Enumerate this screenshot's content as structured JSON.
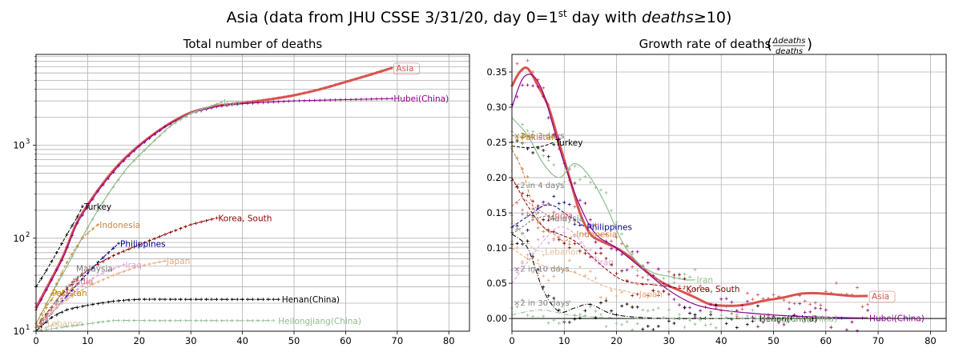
{
  "figure": {
    "suptitle": "Asia (data from JHU CSSE 3/31/20, day 0=1",
    "suptitle_sup": "st",
    "suptitle_mid": " day with ",
    "suptitle_italic": "deaths",
    "suptitle_end": "≥10)"
  },
  "chart_data": [
    {
      "type": "line",
      "title": "Total number of deaths",
      "xlabel": "",
      "ylabel": "",
      "xlim": [
        0,
        84
      ],
      "ylim": [
        10,
        9500
      ],
      "yscale": "log",
      "xticks": [
        0,
        10,
        20,
        30,
        40,
        50,
        60,
        70,
        80
      ],
      "yticks": [
        {
          "value": 10,
          "label": "10",
          "exp": "1"
        },
        {
          "value": 100,
          "label": "10",
          "exp": "2"
        },
        {
          "value": 1000,
          "label": "10",
          "exp": "3"
        }
      ],
      "grid": true,
      "series": [
        {
          "name": "Asia",
          "color": "#d9534f",
          "width": 3,
          "dash": "",
          "boxed": true,
          "x": [
            0,
            5,
            8,
            12,
            16,
            20,
            25,
            30,
            35,
            40,
            45,
            50,
            55,
            60,
            65,
            69
          ],
          "y": [
            18,
            60,
            150,
            330,
            620,
            1000,
            1600,
            2250,
            2650,
            2850,
            3100,
            3450,
            4000,
            4800,
            5800,
            6800
          ]
        },
        {
          "name": "Hubei(China)",
          "color": "#8b008b",
          "width": 1,
          "dash": "",
          "x": [
            0,
            5,
            8,
            12,
            16,
            20,
            25,
            30,
            35,
            40,
            50,
            60,
            69
          ],
          "y": [
            17,
            58,
            145,
            320,
            600,
            980,
            1580,
            2200,
            2600,
            2800,
            3000,
            3100,
            3180
          ]
        },
        {
          "name": "Iran",
          "color": "#8fbc8f",
          "width": 1.2,
          "dash": "",
          "x": [
            0,
            3,
            6,
            10,
            14,
            18,
            22,
            26,
            30,
            36
          ],
          "y": [
            12,
            25,
            50,
            130,
            300,
            600,
            1000,
            1600,
            2200,
            2900
          ]
        },
        {
          "name": "Turkey",
          "color": "#000000",
          "width": 1,
          "dash": "4,2",
          "x": [
            0,
            2,
            4,
            6,
            8,
            9
          ],
          "y": [
            30,
            45,
            70,
            110,
            170,
            220
          ]
        },
        {
          "name": "Indonesia",
          "color": "#cd853f",
          "width": 1,
          "dash": "4,2",
          "x": [
            0,
            3,
            6,
            9,
            12
          ],
          "y": [
            12,
            25,
            55,
            100,
            140
          ]
        },
        {
          "name": "Korea, South",
          "color": "#8b0000",
          "width": 1,
          "dash": "4,2",
          "x": [
            0,
            5,
            10,
            15,
            20,
            25,
            30,
            35
          ],
          "y": [
            11,
            25,
            45,
            65,
            85,
            110,
            140,
            165
          ]
        },
        {
          "name": "Philippines",
          "color": "#00008b",
          "width": 1,
          "dash": "4,2",
          "x": [
            0,
            4,
            8,
            12,
            16
          ],
          "y": [
            10,
            18,
            32,
            55,
            88
          ]
        },
        {
          "name": "Iraq",
          "color": "#dda0dd",
          "width": 1,
          "dash": "4,2",
          "x": [
            0,
            4,
            8,
            12,
            17
          ],
          "y": [
            10,
            18,
            28,
            40,
            52
          ]
        },
        {
          "name": "Japan",
          "color": "#e9a97a",
          "width": 1,
          "dash": "4,2",
          "x": [
            0,
            5,
            10,
            15,
            20,
            25
          ],
          "y": [
            11,
            20,
            30,
            40,
            50,
            57
          ]
        },
        {
          "name": "Malaysia",
          "color": "#777777",
          "width": 1,
          "dash": "3,2",
          "x": [
            0,
            3,
            6,
            9
          ],
          "y": [
            10,
            18,
            30,
            42
          ]
        },
        {
          "name": "India",
          "color": "#e07070",
          "width": 1,
          "dash": "3,2",
          "x": [
            0,
            3,
            6,
            8
          ],
          "y": [
            10,
            17,
            26,
            32
          ]
        },
        {
          "name": "Pakistan",
          "color": "#b8860b",
          "width": 1,
          "dash": "3,2",
          "x": [
            0,
            2,
            4
          ],
          "y": [
            10,
            18,
            26
          ]
        },
        {
          "name": "Lebanon",
          "color": "#e0c0a0",
          "width": 1,
          "dash": "3,2",
          "x": [
            0,
            2,
            4
          ],
          "y": [
            10,
            11,
            12
          ]
        },
        {
          "name": "Henan(China)",
          "color": "#000000",
          "width": 1,
          "dash": "6,2,1,2",
          "x": [
            0,
            3,
            6,
            10,
            15,
            20,
            30,
            40,
            47
          ],
          "y": [
            10,
            14,
            17,
            19,
            21,
            22,
            22,
            22,
            22
          ]
        },
        {
          "name": "Heilongjiang(China)",
          "color": "#8fbc8f",
          "width": 1,
          "dash": "6,2,1,2",
          "x": [
            0,
            5,
            10,
            15,
            25,
            35,
            46
          ],
          "y": [
            10,
            11,
            12,
            13,
            13,
            13,
            13
          ]
        }
      ]
    },
    {
      "type": "line",
      "title": "Growth rate of deaths",
      "xlabel": "",
      "ylabel": "",
      "xlim": [
        0,
        83
      ],
      "ylim": [
        -0.018,
        0.375
      ],
      "xticks": [
        0,
        10,
        20,
        30,
        40,
        50,
        60,
        70,
        80
      ],
      "yticks": [
        0.0,
        0.05,
        0.1,
        0.15,
        0.2,
        0.25,
        0.3,
        0.35
      ],
      "ytick_labels": [
        "0.00",
        "0.05",
        "0.10",
        "0.15",
        "0.20",
        "0.25",
        "0.30",
        "0.35"
      ],
      "grid": true,
      "reference_lines": [
        {
          "label": "×2 in 3 days",
          "value": 0.26
        },
        {
          "label": "×2 in 4 days",
          "value": 0.19
        },
        {
          "label": "×2 in 10 days",
          "value": 0.071
        },
        {
          "label": "×2 in 30 days",
          "value": 0.023
        }
      ],
      "series": [
        {
          "name": "Asia",
          "color": "#d9534f",
          "width": 3,
          "dash": "",
          "boxed": true,
          "x": [
            0,
            1.5,
            3,
            5,
            7,
            9,
            11,
            13,
            15,
            17,
            20,
            23,
            26,
            29,
            32,
            35,
            38,
            42,
            45,
            48,
            52,
            55,
            58,
            62,
            65,
            68
          ],
          "y": [
            0.33,
            0.35,
            0.355,
            0.33,
            0.3,
            0.25,
            0.2,
            0.15,
            0.12,
            0.11,
            0.1,
            0.085,
            0.065,
            0.05,
            0.04,
            0.03,
            0.02,
            0.018,
            0.02,
            0.025,
            0.03,
            0.035,
            0.036,
            0.034,
            0.032,
            0.032
          ]
        },
        {
          "name": "Hubei(China)",
          "color": "#8b008b",
          "width": 1.2,
          "dash": "",
          "x": [
            0,
            2,
            4,
            6,
            8,
            10,
            13,
            16,
            20,
            25,
            30,
            35,
            40,
            45,
            50,
            55,
            60,
            65,
            68
          ],
          "y": [
            0.3,
            0.34,
            0.345,
            0.32,
            0.27,
            0.22,
            0.16,
            0.12,
            0.1,
            0.07,
            0.04,
            0.02,
            0.012,
            0.008,
            0.005,
            0.003,
            0.002,
            0.001,
            0.001
          ]
        },
        {
          "name": "Iran",
          "color": "#8fbc8f",
          "width": 1.2,
          "dash": "",
          "x": [
            0,
            3,
            6,
            9,
            12,
            15,
            18,
            21,
            24,
            27,
            30,
            33,
            35
          ],
          "y": [
            0.285,
            0.26,
            0.22,
            0.2,
            0.22,
            0.2,
            0.16,
            0.11,
            0.08,
            0.065,
            0.06,
            0.055,
            0.055
          ]
        },
        {
          "name": "Turkey",
          "color": "#000000",
          "width": 1,
          "dash": "4,2",
          "x": [
            0,
            2,
            4,
            6,
            8
          ],
          "y": [
            0.245,
            0.243,
            0.243,
            0.245,
            0.25
          ]
        },
        {
          "name": "Pakistan",
          "color": "#b8860b",
          "width": 1,
          "dash": "3,2",
          "x": [
            0,
            1,
            2,
            3
          ],
          "y": [
            0.26,
            0.258,
            0.258,
            0.258
          ]
        },
        {
          "name": "Indonesia",
          "color": "#cd853f",
          "width": 1,
          "dash": "4,2",
          "x": [
            0,
            2,
            4,
            6,
            8,
            10,
            12
          ],
          "y": [
            0.24,
            0.21,
            0.16,
            0.13,
            0.12,
            0.11,
            0.12
          ]
        },
        {
          "name": "Philippines",
          "color": "#00008b",
          "width": 1,
          "dash": "4,2",
          "x": [
            0,
            2,
            4,
            6,
            8,
            10,
            12,
            14
          ],
          "y": [
            0.13,
            0.14,
            0.15,
            0.16,
            0.16,
            0.15,
            0.14,
            0.13
          ]
        },
        {
          "name": "Malaysia",
          "color": "#777777",
          "width": 1,
          "dash": "3,2",
          "x": [
            0,
            2,
            4,
            6,
            8
          ],
          "y": [
            0.12,
            0.13,
            0.14,
            0.145,
            0.145
          ]
        },
        {
          "name": "India",
          "color": "#e07070",
          "width": 1,
          "dash": "3,2",
          "x": [
            0,
            2,
            4,
            6,
            8
          ],
          "y": [
            0.16,
            0.17,
            0.16,
            0.15,
            0.14
          ]
        },
        {
          "name": "Iraq",
          "color": "#dda0dd",
          "width": 1,
          "dash": "4,2",
          "x": [
            0,
            3,
            6,
            9,
            12,
            15,
            16
          ],
          "y": [
            0.05,
            0.08,
            0.11,
            0.13,
            0.12,
            0.09,
            0.08
          ]
        },
        {
          "name": "Lebanon",
          "color": "#e0c0a0",
          "width": 1,
          "dash": "3,2",
          "x": [
            0,
            2,
            4,
            6
          ],
          "y": [
            0.14,
            0.12,
            0.1,
            0.095
          ]
        },
        {
          "name": "Korea, South",
          "color": "#8b0000",
          "width": 1,
          "dash": "4,2",
          "x": [
            0,
            3,
            6,
            9,
            12,
            15,
            18,
            21,
            24,
            27,
            30,
            33
          ],
          "y": [
            0.2,
            0.16,
            0.13,
            0.12,
            0.11,
            0.09,
            0.07,
            0.055,
            0.05,
            0.048,
            0.045,
            0.042
          ]
        },
        {
          "name": "Japan",
          "color": "#e9a97a",
          "width": 1,
          "dash": "4,2",
          "x": [
            0,
            3,
            6,
            9,
            12,
            15,
            18,
            21,
            24
          ],
          "y": [
            0.1,
            0.085,
            0.075,
            0.07,
            0.065,
            0.055,
            0.045,
            0.04,
            0.035
          ]
        },
        {
          "name": "Henan(China)",
          "color": "#000000",
          "width": 1,
          "dash": "6,2,1,2",
          "x": [
            0,
            3,
            6,
            9,
            12,
            15,
            20,
            30,
            40,
            47
          ],
          "y": [
            0.12,
            0.1,
            0.04,
            0.01,
            0.015,
            0.02,
            0.005,
            0.0,
            0.0,
            0.0
          ]
        },
        {
          "name": "Heilongjiang(China)",
          "color": "#8fbc8f",
          "width": 1,
          "dash": "6,2,1,2",
          "x": [
            0,
            3,
            6,
            9,
            12,
            20,
            30,
            40,
            46
          ],
          "y": [
            0.005,
            0.01,
            0.012,
            0.008,
            0.004,
            0.001,
            0.0,
            0.0,
            0.0
          ]
        }
      ]
    }
  ]
}
